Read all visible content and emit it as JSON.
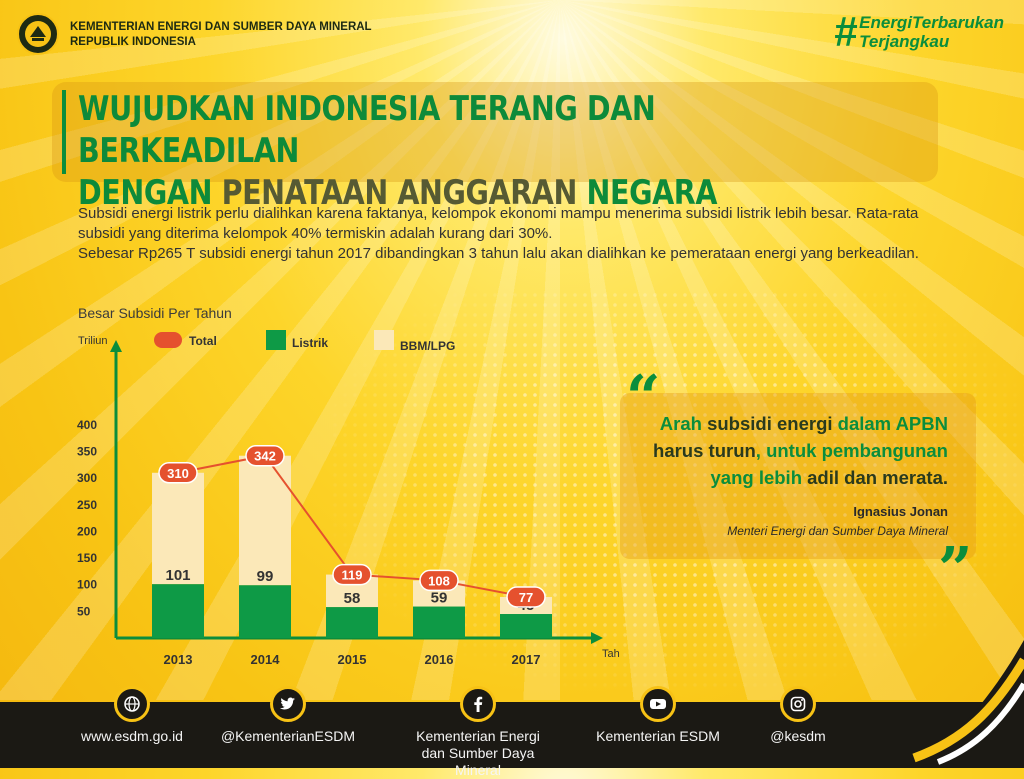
{
  "header": {
    "ministry_line1": "KEMENTERIAN ENERGI DAN SUMBER DAYA MINERAL",
    "ministry_line2": "REPUBLIK INDONESIA",
    "hashtag_symbol": "#",
    "hashtag_line1": "EnergiTerbarukan",
    "hashtag_line2": "Terjangkau"
  },
  "title": {
    "line1": "WUJUDKAN INDONESIA TERANG DAN BERKEADILAN",
    "line2_a": "DENGAN ",
    "line2_b": "PENATAAN ANGGARAN ",
    "line2_c": "NEGARA"
  },
  "description": {
    "p1": "Subsidi energi listrik perlu dialihkan karena faktanya, kelompok ekonomi mampu menerima subsidi listrik lebih besar. Rata-rata subsidi yang diterima kelompok 40% termiskin adalah kurang dari 30%.",
    "p2": "Sebesar Rp265 T subsidi energi tahun 2017 dibandingkan 3 tahun lalu akan dialihkan ke pemerataan energi yang berkeadilan."
  },
  "chart_title": "Besar Subsidi Per Tahun",
  "chart_data": {
    "type": "bar",
    "stacked": true,
    "ylabel": "Triliun",
    "xlabel": "Tahun",
    "categories": [
      "2013",
      "2014",
      "2015",
      "2016",
      "2017"
    ],
    "yticks": [
      50,
      100,
      150,
      200,
      250,
      300,
      350,
      400
    ],
    "ylim": [
      0,
      400
    ],
    "legend_position": "top",
    "series": [
      {
        "name": "Listrik",
        "values": [
          101,
          99,
          58,
          59,
          45
        ],
        "color": "#0e9a46"
      },
      {
        "name": "BBM/LPG",
        "values": [
          209,
          243,
          61,
          49,
          32
        ],
        "color": "#fbe8b8"
      },
      {
        "name": "Total",
        "values": [
          310,
          342,
          119,
          108,
          77
        ],
        "color": "#e5512e",
        "style": "line"
      }
    ]
  },
  "quote": {
    "w1": "Arah ",
    "w2": "subsidi energi ",
    "w3": "dalam APBN",
    "w4": "harus turun",
    "w5": ", untuk pembangunan",
    "w6": "yang lebih ",
    "w7": "adil dan merata.",
    "author": "Ignasius Jonan",
    "role": "Menteri Energi dan Sumber Daya Mineral"
  },
  "footer": {
    "items": [
      {
        "icon": "globe-icon",
        "label": "www.esdm.go.id"
      },
      {
        "icon": "twitter-icon",
        "label": "@KementerianESDM"
      },
      {
        "icon": "facebook-icon",
        "label": "Kementerian Energi dan Sumber Daya Mineral"
      },
      {
        "icon": "youtube-icon",
        "label": "Kementerian ESDM"
      },
      {
        "icon": "instagram-icon",
        "label": "@kesdm"
      }
    ]
  },
  "colors": {
    "green": "#0b8d3c",
    "total_red": "#e5512e",
    "cream": "#fbe8b8",
    "footer": "#1b1914",
    "yellow": "#f7c215"
  }
}
